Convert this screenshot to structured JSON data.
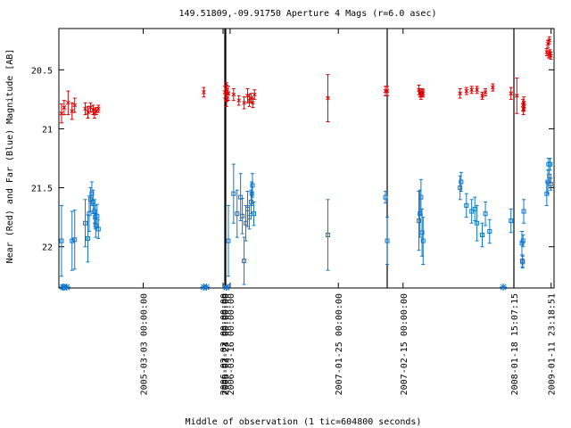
{
  "chart_data": {
    "type": "scatter",
    "title": "149.51809,-09.91750   Aperture 4 Mags (r=6.0 asec)",
    "xlabel": "Middle of observation (1 tic=604800 seconds)",
    "ylabel": "Near (Red) and Far (Blue) Magnitude [AB]",
    "y_reversed": true,
    "ylim": [
      22.35,
      20.15
    ],
    "y_ticks": [
      20.5,
      21,
      21.5,
      22
    ],
    "y_tick_labels": [
      "20.5",
      "21",
      "21.5",
      "22"
    ],
    "x_tick_labels": [
      "2005-03-03 00:00:00",
      "2005-03-24 00:00:00",
      "2006-02-02 00:00:00",
      "2006-02-23 00:00:00",
      "2006-03-16 00:00:00",
      "2007-01-25 00:00:00",
      "2007-02-15 00:00:00",
      "2008-01-18 15:07:15",
      "2009-01-11 23:18:51"
    ],
    "segments": [
      {
        "x_range": [
          0,
          6.3
        ],
        "tick_labels": [
          0,
          1
        ],
        "tick_pos": [
          3.2,
          6.3
        ]
      },
      {
        "x_range": [
          6.3,
          9.4
        ],
        "tick_labels": [
          2,
          3
        ],
        "tick_pos": [
          3.2,
          6.3
        ]
      },
      {
        "x_range": [
          0,
          4.6
        ],
        "tick_labels": [
          4,
          5
        ],
        "tick_pos": [
          0.1,
          3.2
        ]
      },
      {
        "x_range": [
          0,
          1.2
        ],
        "tick_labels": [
          6
        ],
        "tick_pos": [
          0.15
        ]
      },
      {
        "x_range": [
          0,
          1.1
        ],
        "tick_labels": [
          7,
          8
        ],
        "tick_pos": [
          0.0,
          1.02
        ]
      }
    ],
    "series": [
      {
        "color": "#dd0000",
        "marker": "x",
        "points": [
          {
            "seg": 0,
            "x": 0.1,
            "y": 20.87,
            "err": 0.08
          },
          {
            "seg": 0,
            "x": 0.2,
            "y": 20.82,
            "err": 0.06
          },
          {
            "seg": 0,
            "x": 0.35,
            "y": 20.78,
            "err": 0.1
          },
          {
            "seg": 0,
            "x": 0.5,
            "y": 20.85,
            "err": 0.07
          },
          {
            "seg": 0,
            "x": 0.6,
            "y": 20.8,
            "err": 0.06
          },
          {
            "seg": 0,
            "x": 1.0,
            "y": 20.83,
            "err": 0.05
          },
          {
            "seg": 0,
            "x": 1.1,
            "y": 20.86,
            "err": 0.05
          },
          {
            "seg": 0,
            "x": 1.2,
            "y": 20.82,
            "err": 0.04
          },
          {
            "seg": 0,
            "x": 1.3,
            "y": 20.84,
            "err": 0.04
          },
          {
            "seg": 0,
            "x": 1.35,
            "y": 20.87,
            "err": 0.04
          },
          {
            "seg": 0,
            "x": 1.42,
            "y": 20.85,
            "err": 0.03
          },
          {
            "seg": 0,
            "x": 1.5,
            "y": 20.83,
            "err": 0.03
          },
          {
            "seg": 0,
            "x": 5.5,
            "y": 20.69,
            "err": 0.04
          },
          {
            "seg": 1,
            "x": 6.4,
            "y": 20.69,
            "err": 0.05
          },
          {
            "seg": 1,
            "x": 9.2,
            "y": 20.7,
            "err": 0.07
          },
          {
            "seg": 1,
            "x": 9.25,
            "y": 20.75,
            "err": 0.06
          },
          {
            "seg": 1,
            "x": 9.35,
            "y": 20.67,
            "err": 0.06
          },
          {
            "seg": 2,
            "x": 0.05,
            "y": 20.7,
            "err": 0.06
          },
          {
            "seg": 2,
            "x": 0.2,
            "y": 20.71,
            "err": 0.05
          },
          {
            "seg": 2,
            "x": 0.35,
            "y": 20.76,
            "err": 0.04
          },
          {
            "seg": 2,
            "x": 0.5,
            "y": 20.78,
            "err": 0.05
          },
          {
            "seg": 2,
            "x": 0.6,
            "y": 20.72,
            "err": 0.06
          },
          {
            "seg": 2,
            "x": 0.65,
            "y": 20.76,
            "err": 0.05
          },
          {
            "seg": 2,
            "x": 0.7,
            "y": 20.74,
            "err": 0.04
          },
          {
            "seg": 2,
            "x": 0.75,
            "y": 20.78,
            "err": 0.04
          },
          {
            "seg": 2,
            "x": 0.8,
            "y": 20.71,
            "err": 0.04
          },
          {
            "seg": 2,
            "x": 2.9,
            "y": 20.74,
            "err": 0.2
          },
          {
            "seg": 2,
            "x": 4.55,
            "y": 20.68,
            "err": 0.04
          },
          {
            "seg": 3,
            "x": 0.0,
            "y": 20.68,
            "err": 0.04
          },
          {
            "seg": 3,
            "x": 0.3,
            "y": 20.67,
            "err": 0.04
          },
          {
            "seg": 3,
            "x": 0.31,
            "y": 20.7,
            "err": 0.03
          },
          {
            "seg": 3,
            "x": 0.32,
            "y": 20.72,
            "err": 0.03
          },
          {
            "seg": 3,
            "x": 0.33,
            "y": 20.69,
            "err": 0.03
          },
          {
            "seg": 3,
            "x": 0.34,
            "y": 20.7,
            "err": 0.03
          },
          {
            "seg": 3,
            "x": 0.69,
            "y": 20.7,
            "err": 0.04
          },
          {
            "seg": 3,
            "x": 0.75,
            "y": 20.68,
            "err": 0.03
          },
          {
            "seg": 3,
            "x": 0.8,
            "y": 20.67,
            "err": 0.03
          },
          {
            "seg": 3,
            "x": 0.85,
            "y": 20.67,
            "err": 0.03
          },
          {
            "seg": 3,
            "x": 0.9,
            "y": 20.72,
            "err": 0.03
          },
          {
            "seg": 3,
            "x": 0.93,
            "y": 20.69,
            "err": 0.03
          },
          {
            "seg": 3,
            "x": 1.0,
            "y": 20.65,
            "err": 0.03
          },
          {
            "seg": 4,
            "x": -0.08,
            "y": 20.7,
            "err": 0.05
          },
          {
            "seg": 4,
            "x": 0.08,
            "y": 20.72,
            "err": 0.15
          },
          {
            "seg": 4,
            "x": 0.25,
            "y": 20.8,
            "err": 0.05
          },
          {
            "seg": 4,
            "x": 0.26,
            "y": 20.83,
            "err": 0.05
          },
          {
            "seg": 4,
            "x": 0.27,
            "y": 20.78,
            "err": 0.05
          },
          {
            "seg": 4,
            "x": 0.28,
            "y": 20.81,
            "err": 0.04
          },
          {
            "seg": 4,
            "x": 0.9,
            "y": 20.35,
            "err": 0.03
          },
          {
            "seg": 4,
            "x": 0.93,
            "y": 20.28,
            "err": 0.03
          },
          {
            "seg": 4,
            "x": 0.95,
            "y": 20.37,
            "err": 0.03
          },
          {
            "seg": 4,
            "x": 0.97,
            "y": 20.25,
            "err": 0.03
          },
          {
            "seg": 4,
            "x": 0.99,
            "y": 20.36,
            "err": 0.03
          },
          {
            "seg": 4,
            "x": 1.01,
            "y": 20.38,
            "err": 0.03
          }
        ]
      },
      {
        "color": "#1177cc",
        "marker": "square",
        "points": [
          {
            "seg": 0,
            "x": 0.1,
            "y": 21.95,
            "err": 0.3
          },
          {
            "seg": 0,
            "x": 0.5,
            "y": 21.95,
            "err": 0.25
          },
          {
            "seg": 0,
            "x": 0.6,
            "y": 21.94,
            "err": 0.25
          },
          {
            "seg": 0,
            "x": 1.0,
            "y": 21.8,
            "err": 0.2
          },
          {
            "seg": 0,
            "x": 1.1,
            "y": 21.93,
            "err": 0.2
          },
          {
            "seg": 0,
            "x": 1.15,
            "y": 21.72,
            "err": 0.15
          },
          {
            "seg": 0,
            "x": 1.2,
            "y": 21.6,
            "err": 0.1
          },
          {
            "seg": 0,
            "x": 1.25,
            "y": 21.55,
            "err": 0.1
          },
          {
            "seg": 0,
            "x": 1.3,
            "y": 21.62,
            "err": 0.1
          },
          {
            "seg": 0,
            "x": 1.35,
            "y": 21.7,
            "err": 0.1
          },
          {
            "seg": 0,
            "x": 1.38,
            "y": 21.75,
            "err": 0.1
          },
          {
            "seg": 0,
            "x": 1.4,
            "y": 21.82,
            "err": 0.1
          },
          {
            "seg": 0,
            "x": 1.45,
            "y": 21.74,
            "err": 0.1
          },
          {
            "seg": 0,
            "x": 1.5,
            "y": 21.85,
            "err": 0.08
          },
          {
            "seg": 2,
            "x": 0.05,
            "y": 21.95,
            "err": 0.3
          },
          {
            "seg": 2,
            "x": 0.2,
            "y": 21.55,
            "err": 0.25
          },
          {
            "seg": 2,
            "x": 0.3,
            "y": 21.72,
            "err": 0.2
          },
          {
            "seg": 2,
            "x": 0.4,
            "y": 21.58,
            "err": 0.2
          },
          {
            "seg": 2,
            "x": 0.45,
            "y": 21.74,
            "err": 0.15
          },
          {
            "seg": 2,
            "x": 0.5,
            "y": 22.12,
            "err": 0.2
          },
          {
            "seg": 2,
            "x": 0.55,
            "y": 21.8,
            "err": 0.15
          },
          {
            "seg": 2,
            "x": 0.6,
            "y": 21.68,
            "err": 0.15
          },
          {
            "seg": 2,
            "x": 0.65,
            "y": 21.75,
            "err": 0.1
          },
          {
            "seg": 2,
            "x": 0.7,
            "y": 21.62,
            "err": 0.1
          },
          {
            "seg": 2,
            "x": 0.72,
            "y": 21.55,
            "err": 0.1
          },
          {
            "seg": 2,
            "x": 0.74,
            "y": 21.48,
            "err": 0.1
          },
          {
            "seg": 2,
            "x": 0.78,
            "y": 21.72,
            "err": 0.1
          },
          {
            "seg": 2,
            "x": 2.9,
            "y": 21.9,
            "err": 0.3
          },
          {
            "seg": 2,
            "x": 4.55,
            "y": 21.58,
            "err": 0.05
          },
          {
            "seg": 3,
            "x": 0.0,
            "y": 21.95,
            "err": 0.2
          },
          {
            "seg": 3,
            "x": 0.3,
            "y": 21.78,
            "err": 0.25
          },
          {
            "seg": 3,
            "x": 0.31,
            "y": 21.72,
            "err": 0.2
          },
          {
            "seg": 3,
            "x": 0.32,
            "y": 21.58,
            "err": 0.15
          },
          {
            "seg": 3,
            "x": 0.33,
            "y": 21.88,
            "err": 0.2
          },
          {
            "seg": 3,
            "x": 0.34,
            "y": 21.95,
            "err": 0.2
          },
          {
            "seg": 3,
            "x": 0.69,
            "y": 21.5,
            "err": 0.1
          },
          {
            "seg": 3,
            "x": 0.7,
            "y": 21.45,
            "err": 0.08
          },
          {
            "seg": 3,
            "x": 0.75,
            "y": 21.65,
            "err": 0.1
          },
          {
            "seg": 3,
            "x": 0.8,
            "y": 21.7,
            "err": 0.1
          },
          {
            "seg": 3,
            "x": 0.83,
            "y": 21.68,
            "err": 0.1
          },
          {
            "seg": 3,
            "x": 0.85,
            "y": 21.8,
            "err": 0.15
          },
          {
            "seg": 3,
            "x": 0.9,
            "y": 21.9,
            "err": 0.1
          },
          {
            "seg": 3,
            "x": 0.93,
            "y": 21.72,
            "err": 0.1
          },
          {
            "seg": 3,
            "x": 0.97,
            "y": 21.87,
            "err": 0.1
          },
          {
            "seg": 4,
            "x": -0.08,
            "y": 21.78,
            "err": 0.1
          },
          {
            "seg": 4,
            "x": 0.22,
            "y": 21.97,
            "err": 0.1
          },
          {
            "seg": 4,
            "x": 0.23,
            "y": 22.12,
            "err": 0.05
          },
          {
            "seg": 4,
            "x": 0.24,
            "y": 22.13,
            "err": 0.05
          },
          {
            "seg": 4,
            "x": 0.25,
            "y": 21.95,
            "err": 0.05
          },
          {
            "seg": 4,
            "x": 0.27,
            "y": 21.7,
            "err": 0.1
          },
          {
            "seg": 4,
            "x": 0.9,
            "y": 21.55,
            "err": 0.1
          },
          {
            "seg": 4,
            "x": 0.93,
            "y": 21.45,
            "err": 0.1
          },
          {
            "seg": 4,
            "x": 0.95,
            "y": 21.3,
            "err": 0.05
          },
          {
            "seg": 4,
            "x": 0.97,
            "y": 21.4,
            "err": 0.05
          },
          {
            "seg": 4,
            "x": 0.99,
            "y": 21.3,
            "err": 0.05
          },
          {
            "seg": 4,
            "x": 1.01,
            "y": 21.47,
            "err": 0.05
          }
        ]
      }
    ],
    "upper_limits": [
      {
        "seg": 0,
        "x": 0.15
      },
      {
        "seg": 0,
        "x": 0.2
      },
      {
        "seg": 0,
        "x": 0.3
      },
      {
        "seg": 0,
        "x": 5.5
      },
      {
        "seg": 0,
        "x": 5.6
      },
      {
        "seg": 1,
        "x": 9.05
      },
      {
        "seg": 1,
        "x": 9.15
      },
      {
        "seg": 1,
        "x": 9.3
      },
      {
        "seg": 3,
        "x": 1.1
      }
    ]
  }
}
